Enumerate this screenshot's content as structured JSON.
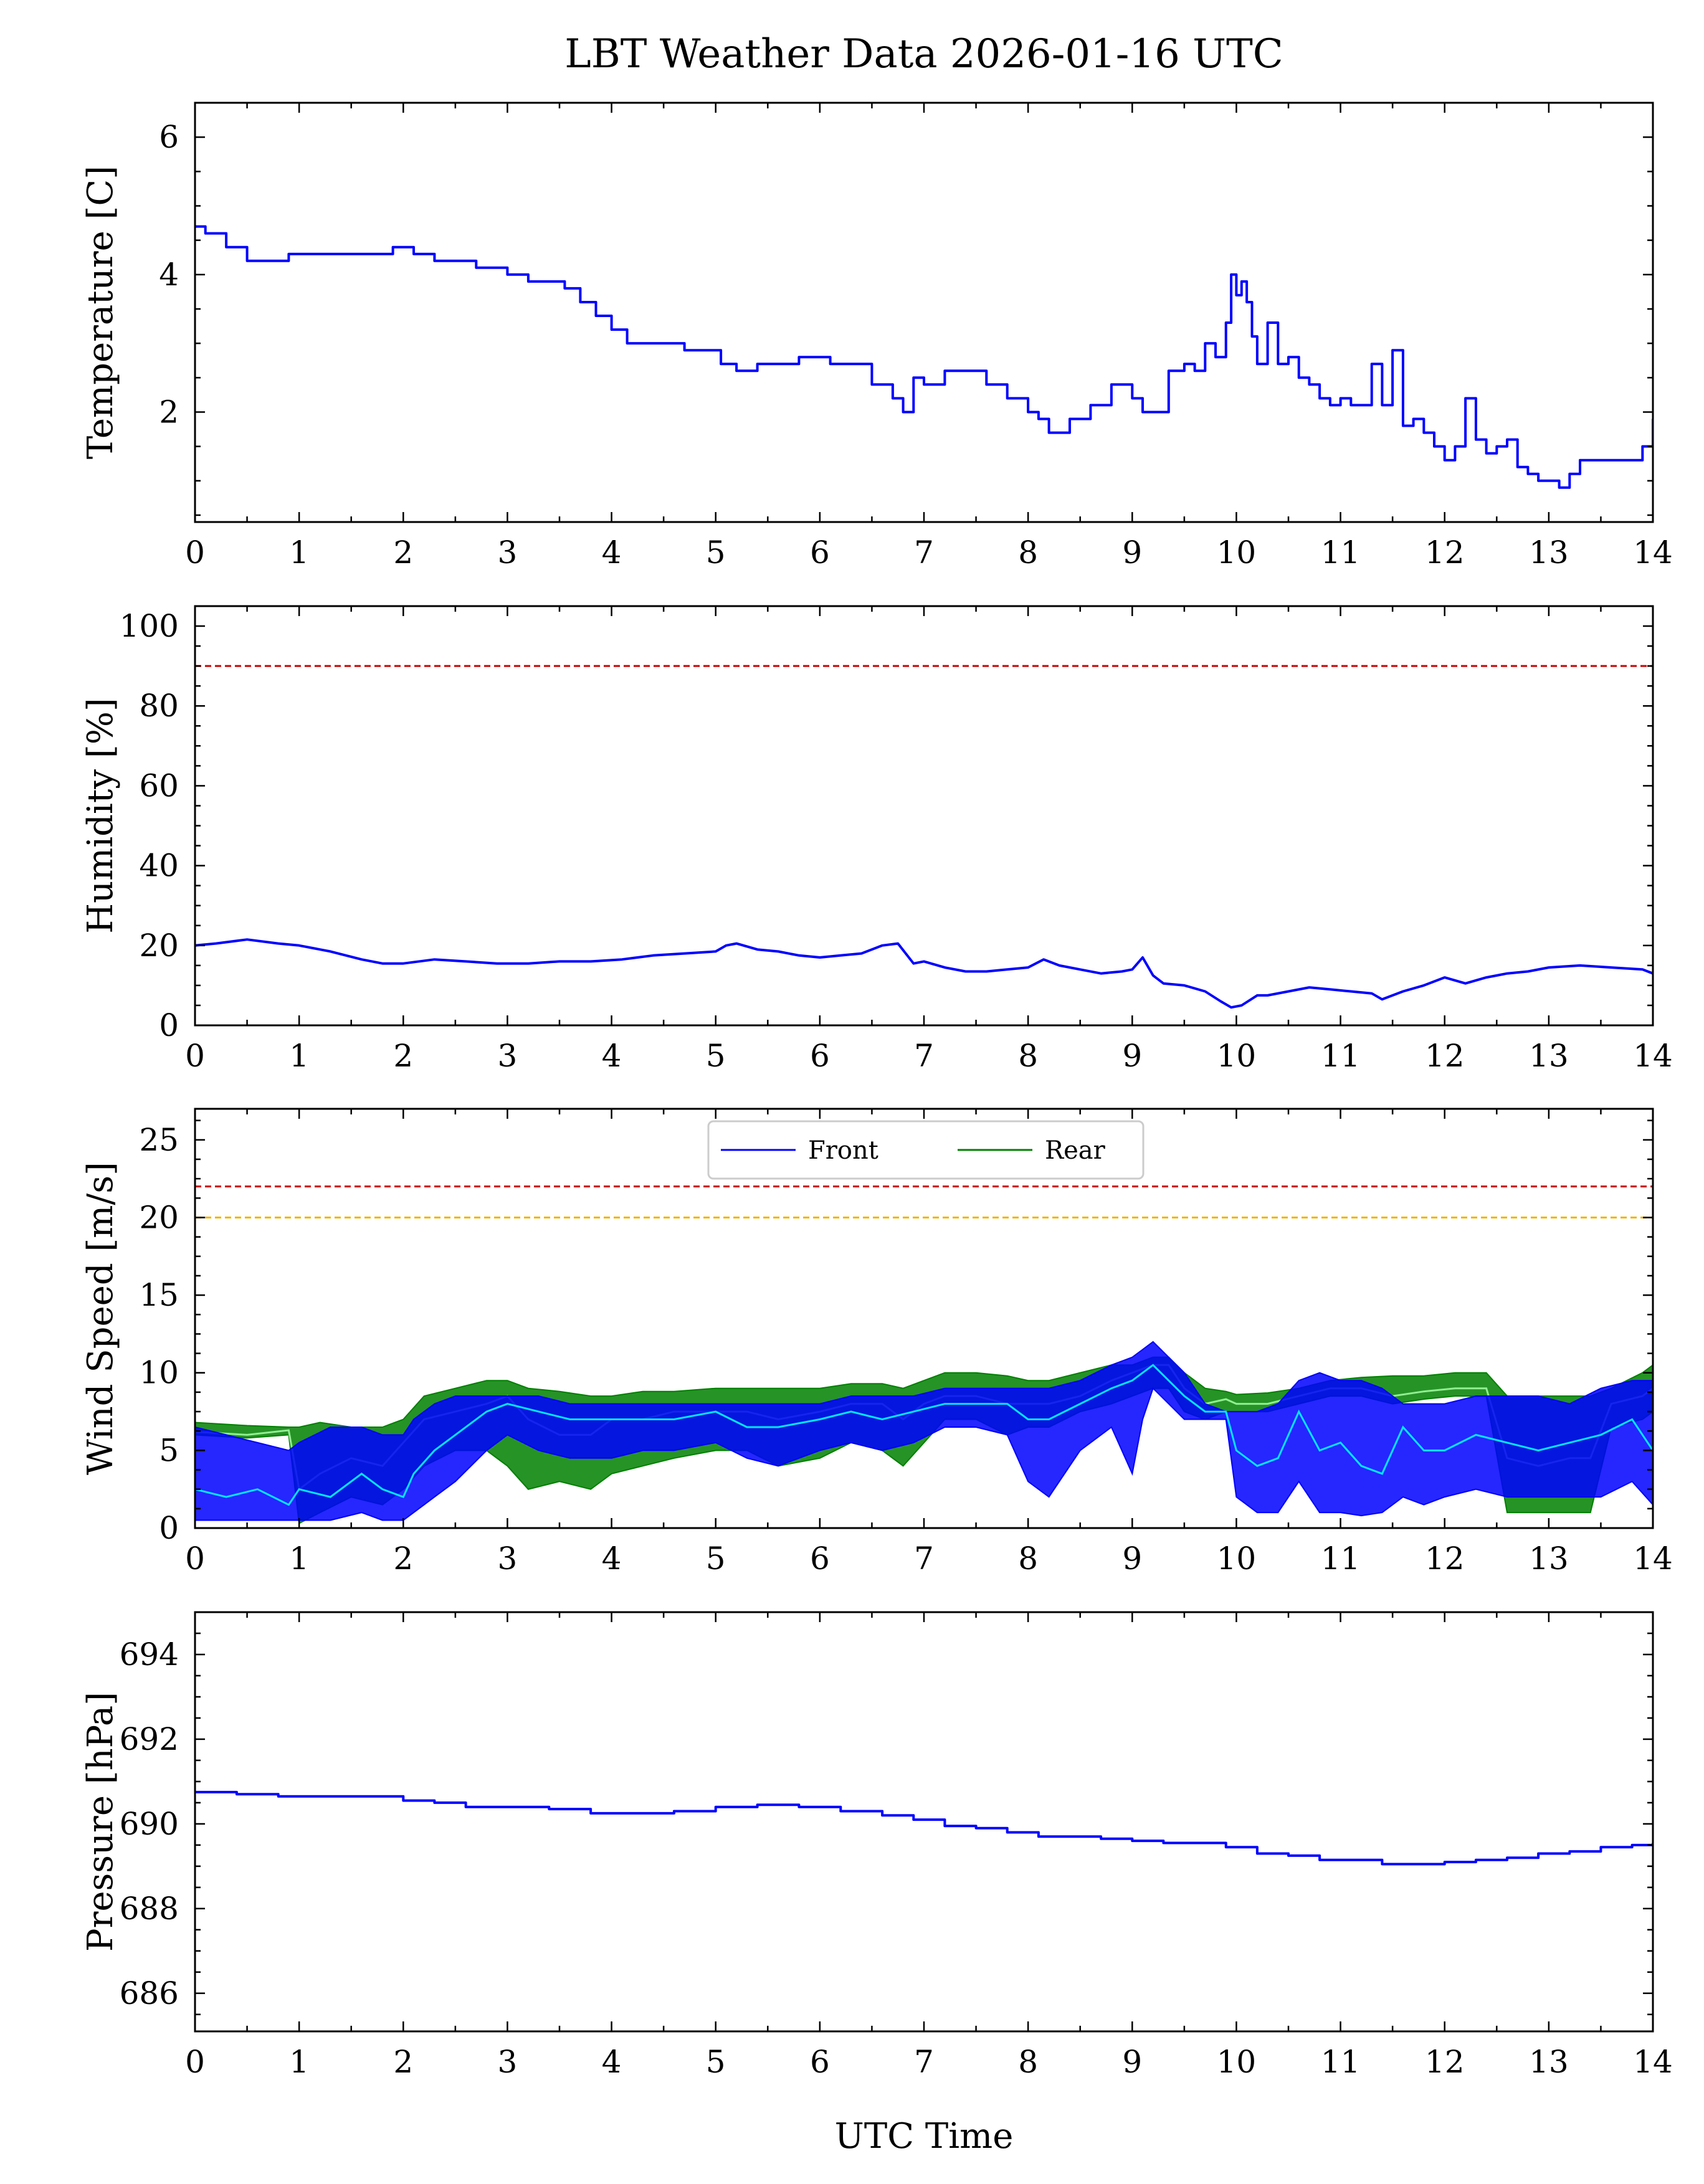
{
  "title": "LBT Weather Data 2026-01-16 UTC",
  "xlabel": "UTC Time",
  "colors": {
    "front": "#0000ff",
    "rear": "#008000",
    "front_mean": "#00e5ff",
    "rear_mean": "#90ee90",
    "limit_red": "#cc0000",
    "limit_orange": "#f0b400"
  },
  "chart_data": [
    {
      "type": "line",
      "id": "temperature",
      "ylabel": "Temperature [C]",
      "xlim": [
        0,
        14
      ],
      "ylim": [
        0.4,
        6.5
      ],
      "yticks": [
        2,
        4,
        6
      ],
      "xticks": [
        0,
        1,
        2,
        3,
        4,
        5,
        6,
        7,
        8,
        9,
        10,
        11,
        12,
        13,
        14
      ],
      "series": [
        {
          "name": "Temperature",
          "color": "#0000ff",
          "step": true,
          "x": [
            0,
            0.1,
            0.3,
            0.5,
            0.7,
            0.9,
            1.1,
            1.3,
            1.6,
            1.9,
            2.1,
            2.3,
            2.5,
            2.7,
            2.9,
            3.0,
            3.2,
            3.4,
            3.55,
            3.7,
            3.85,
            4.0,
            4.15,
            4.3,
            4.5,
            4.7,
            4.9,
            5.05,
            5.2,
            5.4,
            5.6,
            5.8,
            6.0,
            6.1,
            6.3,
            6.5,
            6.7,
            6.8,
            6.9,
            7.0,
            7.2,
            7.4,
            7.6,
            7.8,
            8.0,
            8.1,
            8.2,
            8.3,
            8.4,
            8.6,
            8.8,
            9.0,
            9.1,
            9.2,
            9.35,
            9.5,
            9.6,
            9.7,
            9.8,
            9.9,
            9.95,
            10.0,
            10.05,
            10.1,
            10.15,
            10.2,
            10.3,
            10.4,
            10.5,
            10.6,
            10.7,
            10.8,
            10.9,
            11.0,
            11.1,
            11.2,
            11.3,
            11.4,
            11.5,
            11.6,
            11.7,
            11.8,
            11.9,
            12.0,
            12.1,
            12.2,
            12.3,
            12.4,
            12.5,
            12.6,
            12.7,
            12.8,
            12.9,
            13.0,
            13.1,
            13.2,
            13.3,
            13.5,
            13.7,
            13.9,
            14.0
          ],
          "y": [
            4.7,
            4.6,
            4.4,
            4.2,
            4.2,
            4.3,
            4.3,
            4.3,
            4.3,
            4.4,
            4.3,
            4.2,
            4.2,
            4.1,
            4.1,
            4.0,
            3.9,
            3.9,
            3.8,
            3.6,
            3.4,
            3.2,
            3.0,
            3.0,
            3.0,
            2.9,
            2.9,
            2.7,
            2.6,
            2.7,
            2.7,
            2.8,
            2.8,
            2.7,
            2.7,
            2.4,
            2.2,
            2.0,
            2.5,
            2.4,
            2.6,
            2.6,
            2.4,
            2.2,
            2.0,
            1.9,
            1.7,
            1.7,
            1.9,
            2.1,
            2.4,
            2.2,
            2.0,
            2.0,
            2.6,
            2.7,
            2.6,
            3.0,
            2.8,
            3.3,
            4.0,
            3.7,
            3.9,
            3.6,
            3.1,
            2.7,
            3.3,
            2.7,
            2.8,
            2.5,
            2.4,
            2.2,
            2.1,
            2.2,
            2.1,
            2.1,
            2.7,
            2.1,
            2.9,
            1.8,
            1.9,
            1.7,
            1.5,
            1.3,
            1.5,
            2.2,
            1.6,
            1.4,
            1.5,
            1.6,
            1.2,
            1.1,
            1.0,
            1.0,
            0.9,
            1.1,
            1.3,
            1.3,
            1.3,
            1.5,
            1.9
          ]
        }
      ]
    },
    {
      "type": "line",
      "id": "humidity",
      "ylabel": "Humidity [%]",
      "xlim": [
        0,
        14
      ],
      "ylim": [
        0,
        105
      ],
      "yticks": [
        0,
        20,
        40,
        60,
        80,
        100
      ],
      "xticks": [
        0,
        1,
        2,
        3,
        4,
        5,
        6,
        7,
        8,
        9,
        10,
        11,
        12,
        13,
        14
      ],
      "hlines": [
        {
          "y": 90,
          "color": "#cc0000"
        }
      ],
      "series": [
        {
          "name": "Humidity",
          "color": "#0000ff",
          "x": [
            0,
            0.2,
            0.5,
            0.8,
            1.0,
            1.3,
            1.6,
            1.8,
            2.0,
            2.3,
            2.6,
            2.9,
            3.2,
            3.5,
            3.8,
            4.1,
            4.4,
            4.7,
            5.0,
            5.1,
            5.2,
            5.4,
            5.6,
            5.8,
            6.0,
            6.2,
            6.4,
            6.6,
            6.75,
            6.9,
            7.0,
            7.2,
            7.4,
            7.6,
            7.8,
            8.0,
            8.15,
            8.3,
            8.5,
            8.7,
            8.9,
            9.0,
            9.1,
            9.2,
            9.3,
            9.5,
            9.7,
            9.85,
            9.95,
            10.05,
            10.2,
            10.3,
            10.5,
            10.7,
            10.9,
            11.1,
            11.3,
            11.4,
            11.6,
            11.8,
            12.0,
            12.2,
            12.4,
            12.6,
            12.8,
            13.0,
            13.3,
            13.6,
            13.9,
            14.0
          ],
          "y": [
            20,
            20.5,
            21.5,
            20.5,
            20,
            18.5,
            16.5,
            15.5,
            15.5,
            16.5,
            16,
            15.5,
            15.5,
            16,
            16,
            16.5,
            17.5,
            18,
            18.5,
            20,
            20.5,
            19,
            18.5,
            17.5,
            17,
            17.5,
            18,
            20,
            20.5,
            15.5,
            16,
            14.5,
            13.5,
            13.5,
            14,
            14.5,
            16.5,
            15,
            14,
            13,
            13.5,
            14,
            17,
            12.5,
            10.5,
            10,
            8.5,
            6,
            4.5,
            5,
            7.5,
            7.5,
            8.5,
            9.5,
            9,
            8.5,
            8,
            6.5,
            8.5,
            10,
            12,
            10.5,
            12,
            13,
            13.5,
            14.5,
            15,
            14.5,
            14,
            13
          ]
        }
      ]
    },
    {
      "type": "line",
      "id": "wind",
      "ylabel": "Wind Speed [m/s]",
      "xlim": [
        0,
        14
      ],
      "ylim": [
        0,
        27
      ],
      "yticks": [
        0,
        5,
        10,
        15,
        20,
        25
      ],
      "xticks": [
        0,
        1,
        2,
        3,
        4,
        5,
        6,
        7,
        8,
        9,
        10,
        11,
        12,
        13,
        14
      ],
      "hlines": [
        {
          "y": 22,
          "color": "#cc0000"
        },
        {
          "y": 20,
          "color": "#f0b400"
        }
      ],
      "legend": [
        "Front",
        "Rear"
      ],
      "series": [
        {
          "name": "Rear",
          "color": "#008000",
          "fill": true,
          "x": [
            0,
            0.5,
            0.9,
            1.0,
            1.2,
            1.5,
            1.8,
            2.0,
            2.2,
            2.5,
            2.8,
            3.0,
            3.2,
            3.5,
            3.8,
            4.0,
            4.3,
            4.6,
            5.0,
            5.3,
            5.6,
            6.0,
            6.3,
            6.6,
            6.8,
            7.0,
            7.2,
            7.5,
            7.8,
            8.0,
            8.2,
            8.5,
            8.8,
            9.0,
            9.2,
            9.35,
            9.5,
            9.7,
            9.9,
            10.0,
            10.3,
            10.6,
            10.9,
            11.2,
            11.5,
            11.8,
            12.1,
            12.4,
            12.6,
            12.9,
            13.2,
            13.4,
            13.6,
            13.9,
            14.0
          ],
          "upper": [
            6.8,
            6.6,
            6.5,
            6.5,
            6.8,
            6.5,
            6.5,
            7,
            8.5,
            9,
            9.5,
            9.5,
            9,
            8.8,
            8.5,
            8.5,
            8.8,
            8.8,
            9,
            9,
            9,
            9,
            9.3,
            9.3,
            9,
            9.5,
            10,
            10,
            9.8,
            9.5,
            9.5,
            10,
            10.5,
            10.5,
            11,
            11,
            10,
            9,
            8.8,
            8.6,
            8.7,
            9,
            9.5,
            9.7,
            9.8,
            9.8,
            10,
            10,
            8.5,
            8.5,
            8.5,
            8.5,
            9,
            10,
            10.5
          ],
          "mean": [
            6.2,
            6.0,
            6.3,
            2.5,
            3.5,
            4.5,
            4.0,
            5.5,
            7.0,
            7.5,
            8.0,
            8.5,
            7.0,
            6.0,
            6.0,
            7.0,
            7.0,
            7.5,
            7.5,
            7.5,
            7.0,
            7.5,
            8.0,
            8.0,
            7.0,
            8.0,
            8.5,
            8.5,
            8.0,
            8.0,
            8.0,
            8.5,
            9.5,
            10.0,
            10.5,
            10.5,
            9.0,
            8.0,
            8.3,
            8.0,
            8.0,
            8.5,
            9.0,
            9.0,
            8.5,
            8.8,
            9.0,
            9.0,
            4.5,
            4.0,
            4.5,
            4.5,
            8.0,
            8.5,
            9.0
          ],
          "lower": [
            6.0,
            5.8,
            6.0,
            0.3,
            1.0,
            2.0,
            1.5,
            2.5,
            4.0,
            5.0,
            5.0,
            4.0,
            2.5,
            3.0,
            2.5,
            3.5,
            4.0,
            4.5,
            5.0,
            5.0,
            4.0,
            4.5,
            5.5,
            5.0,
            4.0,
            5.5,
            7.0,
            7.0,
            6.0,
            6.5,
            6.5,
            7.5,
            8.0,
            8.5,
            9.0,
            9.0,
            7.5,
            7.0,
            7.5,
            7.5,
            7.5,
            8.0,
            8.5,
            8.5,
            8.0,
            8.3,
            8.5,
            8.5,
            1.0,
            1.0,
            1.0,
            1.0,
            6.5,
            7.0,
            7.5
          ]
        },
        {
          "name": "Front",
          "color": "#0000ff",
          "fill": true,
          "x": [
            0,
            0.3,
            0.6,
            0.9,
            1.0,
            1.3,
            1.6,
            1.8,
            2.0,
            2.1,
            2.3,
            2.5,
            2.8,
            3.0,
            3.3,
            3.6,
            4.0,
            4.3,
            4.6,
            5.0,
            5.3,
            5.6,
            6.0,
            6.3,
            6.6,
            6.9,
            7.2,
            7.5,
            7.8,
            8.0,
            8.2,
            8.5,
            8.8,
            9.0,
            9.1,
            9.2,
            9.35,
            9.5,
            9.7,
            9.9,
            10.0,
            10.2,
            10.4,
            10.6,
            10.8,
            11.0,
            11.2,
            11.4,
            11.6,
            11.8,
            12.0,
            12.3,
            12.6,
            12.9,
            13.2,
            13.5,
            13.8,
            14.0
          ],
          "upper": [
            6.5,
            6.0,
            5.5,
            5.0,
            5.5,
            6.5,
            6.5,
            6.0,
            6.0,
            7.0,
            8.0,
            8.5,
            8.5,
            8.5,
            8.5,
            8.0,
            8.0,
            8.0,
            8.0,
            8.0,
            8.0,
            8.0,
            8.0,
            8.5,
            8.5,
            8.5,
            9.0,
            9.0,
            9.0,
            9.0,
            9.0,
            9.5,
            10.5,
            11.0,
            11.5,
            12.0,
            11.0,
            10.0,
            8.0,
            7.5,
            7.5,
            7.5,
            8.0,
            9.5,
            10.0,
            9.5,
            9.5,
            9.0,
            8.0,
            8.0,
            8.0,
            8.5,
            8.5,
            8.5,
            8.0,
            9.0,
            9.5,
            9.5
          ],
          "mean": [
            2.5,
            2.0,
            2.5,
            1.5,
            2.5,
            2.0,
            3.5,
            2.5,
            2.0,
            3.5,
            5.0,
            6.0,
            7.5,
            8.0,
            7.5,
            7.0,
            7.0,
            7.0,
            7.0,
            7.5,
            6.5,
            6.5,
            7.0,
            7.5,
            7.0,
            7.5,
            8.0,
            8.0,
            8.0,
            7.0,
            7.0,
            8.0,
            9.0,
            9.5,
            10.0,
            10.5,
            9.5,
            8.5,
            7.5,
            7.5,
            5.0,
            4.0,
            4.5,
            7.5,
            5.0,
            5.5,
            4.0,
            3.5,
            6.5,
            5.0,
            5.0,
            6.0,
            5.5,
            5.0,
            5.5,
            6.0,
            7.0,
            5.0
          ],
          "lower": [
            0.5,
            0.5,
            0.5,
            0.5,
            0.5,
            0.5,
            1.0,
            0.5,
            0.5,
            1.0,
            2.0,
            3.0,
            5.0,
            6.0,
            5.0,
            4.5,
            4.5,
            5.0,
            5.0,
            5.5,
            4.5,
            4.0,
            5.0,
            5.5,
            5.0,
            5.5,
            6.5,
            6.5,
            6.0,
            3.0,
            2.0,
            5.0,
            6.5,
            3.5,
            7.0,
            9.0,
            8.0,
            7.0,
            7.0,
            7.0,
            2.0,
            1.0,
            1.0,
            3.0,
            1.0,
            1.0,
            0.8,
            1.0,
            2.0,
            1.5,
            2.0,
            2.5,
            2.0,
            2.0,
            2.0,
            2.0,
            3.0,
            1.5
          ]
        }
      ]
    },
    {
      "type": "line",
      "id": "pressure",
      "ylabel": "Pressure [hPa]",
      "xlim": [
        0,
        14
      ],
      "ylim": [
        685.1,
        695.0
      ],
      "yticks": [
        686,
        688,
        690,
        692,
        694
      ],
      "xticks": [
        0,
        1,
        2,
        3,
        4,
        5,
        6,
        7,
        8,
        9,
        10,
        11,
        12,
        13,
        14
      ],
      "series": [
        {
          "name": "Pressure",
          "color": "#0000ff",
          "step": true,
          "x": [
            0,
            0.4,
            0.8,
            1.2,
            1.6,
            2.0,
            2.3,
            2.6,
            3.0,
            3.4,
            3.8,
            4.2,
            4.6,
            5.0,
            5.4,
            5.8,
            6.2,
            6.6,
            6.9,
            7.2,
            7.5,
            7.8,
            8.1,
            8.4,
            8.7,
            9.0,
            9.3,
            9.6,
            9.9,
            10.2,
            10.5,
            10.8,
            11.1,
            11.4,
            11.7,
            12.0,
            12.3,
            12.6,
            12.9,
            13.2,
            13.5,
            13.8,
            14.0
          ],
          "y": [
            690.75,
            690.7,
            690.65,
            690.65,
            690.65,
            690.55,
            690.5,
            690.4,
            690.4,
            690.35,
            690.25,
            690.25,
            690.3,
            690.4,
            690.45,
            690.4,
            690.3,
            690.2,
            690.1,
            689.95,
            689.9,
            689.8,
            689.7,
            689.7,
            689.65,
            689.6,
            689.55,
            689.55,
            689.45,
            689.3,
            689.25,
            689.15,
            689.15,
            689.05,
            689.05,
            689.1,
            689.15,
            689.2,
            689.3,
            689.35,
            689.45,
            689.5,
            689.55
          ]
        }
      ]
    }
  ]
}
